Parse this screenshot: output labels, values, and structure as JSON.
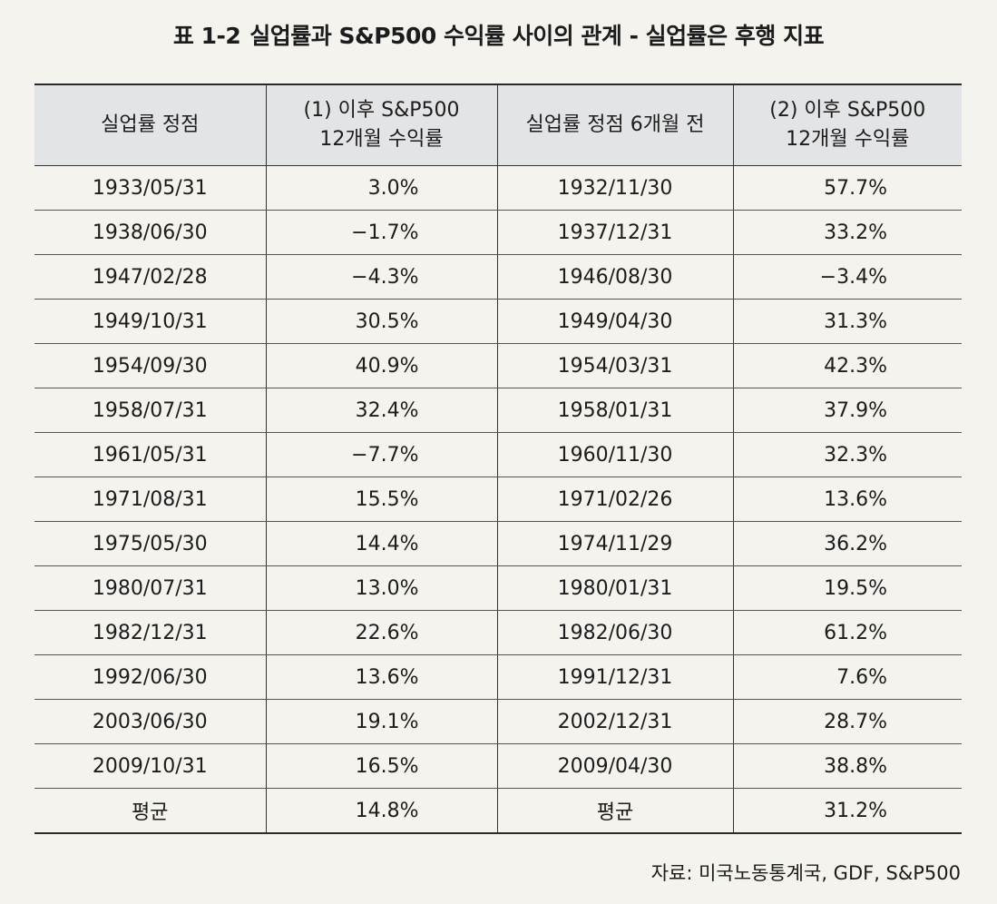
{
  "title": {
    "number": "표 1-2",
    "text": "실업률과 S&P500 수익률 사이의 관계 - 실업률은 후행 지표"
  },
  "table": {
    "headers": [
      [
        "실업률 정점"
      ],
      [
        "(1) 이후 S&P500",
        "12개월 수익률"
      ],
      [
        "실업률 정점 6개월 전"
      ],
      [
        "(2) 이후 S&P500",
        "12개월 수익률"
      ]
    ],
    "rows": [
      [
        "1933/05/31",
        "3.0%",
        "1932/11/30",
        "57.7%"
      ],
      [
        "1938/06/30",
        "−1.7%",
        "1937/12/31",
        "33.2%"
      ],
      [
        "1947/02/28",
        "−4.3%",
        "1946/08/30",
        "−3.4%"
      ],
      [
        "1949/10/31",
        "30.5%",
        "1949/04/30",
        "31.3%"
      ],
      [
        "1954/09/30",
        "40.9%",
        "1954/03/31",
        "42.3%"
      ],
      [
        "1958/07/31",
        "32.4%",
        "1958/01/31",
        "37.9%"
      ],
      [
        "1961/05/31",
        "−7.7%",
        "1960/11/30",
        "32.3%"
      ],
      [
        "1971/08/31",
        "15.5%",
        "1971/02/26",
        "13.6%"
      ],
      [
        "1975/05/30",
        "14.4%",
        "1974/11/29",
        "36.2%"
      ],
      [
        "1980/07/31",
        "13.0%",
        "1980/01/31",
        "19.5%"
      ],
      [
        "1982/12/31",
        "22.6%",
        "1982/06/30",
        "61.2%"
      ],
      [
        "1992/06/30",
        "13.6%",
        "1991/12/31",
        "7.6%"
      ],
      [
        "2003/06/30",
        "19.1%",
        "2002/12/31",
        "28.7%"
      ],
      [
        "2009/10/31",
        "16.5%",
        "2009/04/30",
        "38.8%"
      ]
    ],
    "average": [
      "평균",
      "14.8%",
      "평균",
      "31.2%"
    ]
  },
  "source": "자료: 미국노동통계국, GDF, S&P500"
}
